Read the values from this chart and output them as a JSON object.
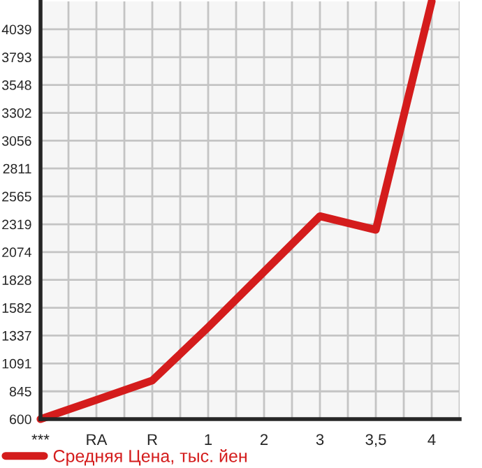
{
  "chart_data": {
    "type": "line",
    "categories": [
      "***",
      "RA",
      "R",
      "1",
      "2",
      "3",
      "3,5",
      "4"
    ],
    "series": [
      {
        "name": "Средняя Цена, тыс. йен",
        "color": "#d41c1c",
        "values": [
          600,
          770,
          940,
          1410,
          1900,
          2390,
          2270,
          4285
        ]
      }
    ],
    "ylim": [
      600,
      4285
    ],
    "yticks": [
      600,
      845,
      1091,
      1337,
      1582,
      1828,
      2074,
      2319,
      2565,
      2811,
      3056,
      3302,
      3548,
      3793,
      4039
    ],
    "grid": true,
    "legend": "bottom left",
    "marker": "none",
    "line_style": "solid"
  }
}
